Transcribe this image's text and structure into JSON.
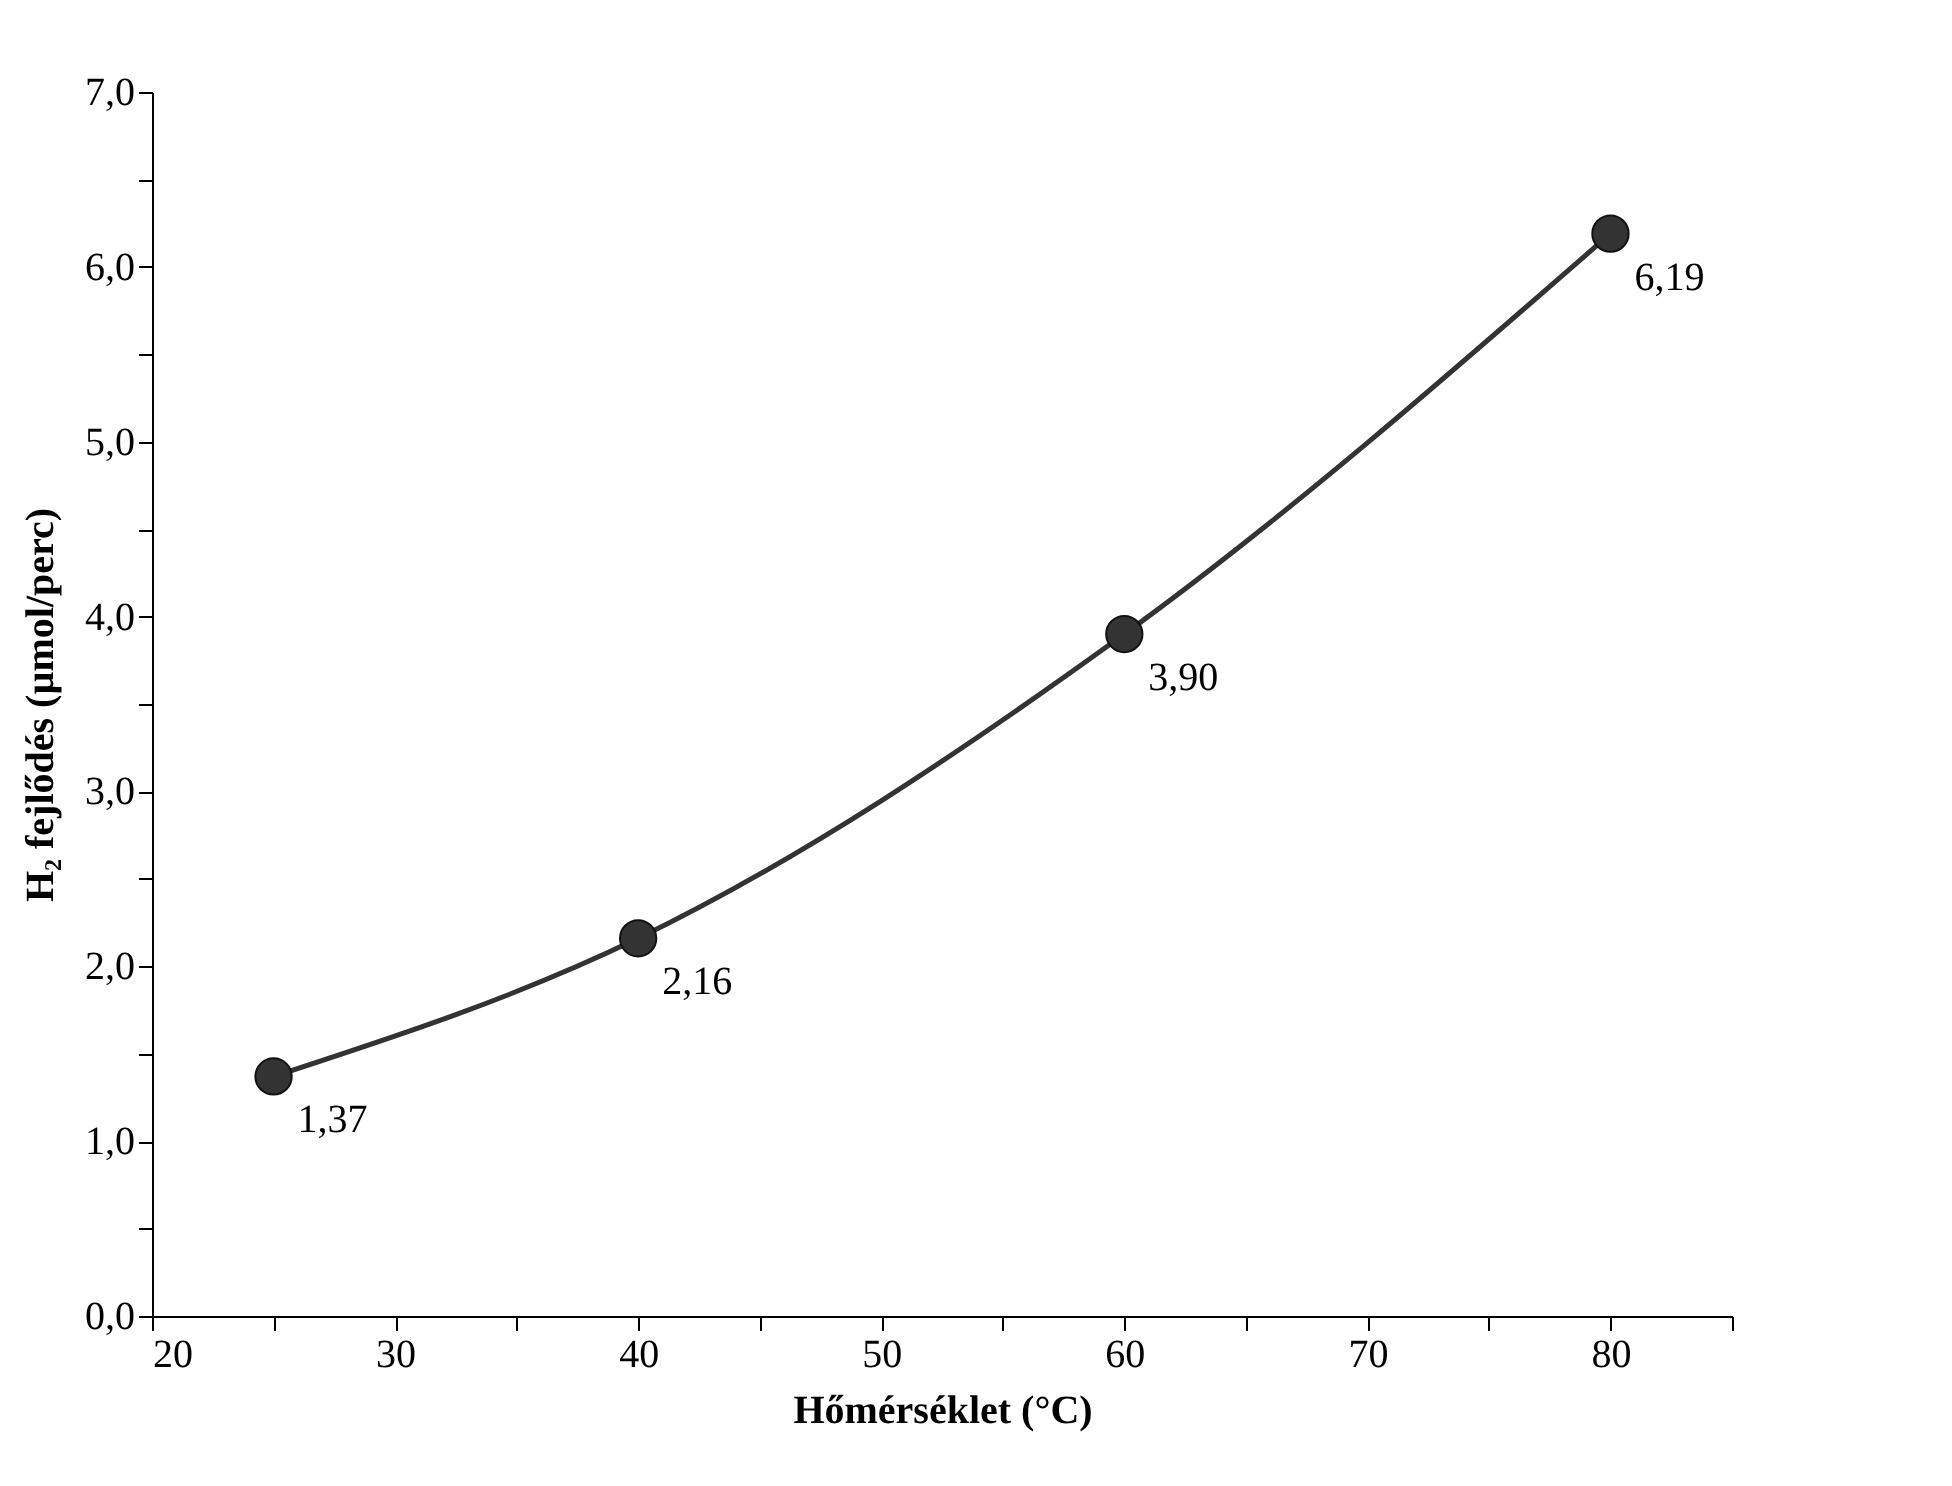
{
  "chart_data": {
    "type": "line",
    "xlabel": "Hőmérséklet (°C)",
    "ylabel": "H₂ fejlődés (µmol/perc)",
    "x": [
      25,
      40,
      60,
      80
    ],
    "series": [
      {
        "color": "#333333",
        "values": [
          1.37,
          2.16,
          3.9,
          6.19
        ],
        "value_labels": [
          "1,37",
          "2,16",
          "3,90",
          "6,19"
        ]
      }
    ],
    "xlim": [
      20,
      85
    ],
    "xticks": [
      20,
      {
        "value": 25,
        "label": null
      },
      30,
      {
        "value": 35,
        "label": null
      },
      40,
      {
        "value": 45,
        "label": null
      },
      50,
      {
        "value": 55,
        "label": null
      },
      60,
      {
        "value": 65,
        "label": null
      },
      70,
      {
        "value": 75,
        "label": null
      },
      80,
      {
        "value": 85,
        "label": null
      }
    ],
    "ylim": [
      0,
      7
    ],
    "yticks": [
      {
        "value": 0,
        "label": "0,0"
      },
      {
        "value": 0.5,
        "label": null
      },
      {
        "value": 1,
        "label": "1,0"
      },
      {
        "value": 1.5,
        "label": null
      },
      {
        "value": 2,
        "label": "2,0"
      },
      {
        "value": 2.5,
        "label": null
      },
      {
        "value": 3,
        "label": "3,0"
      },
      {
        "value": 3.5,
        "label": null
      },
      {
        "value": 4,
        "label": "4,0"
      },
      {
        "value": 4.5,
        "label": null
      },
      {
        "value": 5,
        "label": "5,0"
      },
      {
        "value": 5.5,
        "label": null
      },
      {
        "value": 6,
        "label": "6,0"
      },
      {
        "value": 6.5,
        "label": null
      },
      {
        "value": 7,
        "label": "7,0"
      }
    ],
    "marker": "circle",
    "line_style": "solid",
    "grid": false
  }
}
